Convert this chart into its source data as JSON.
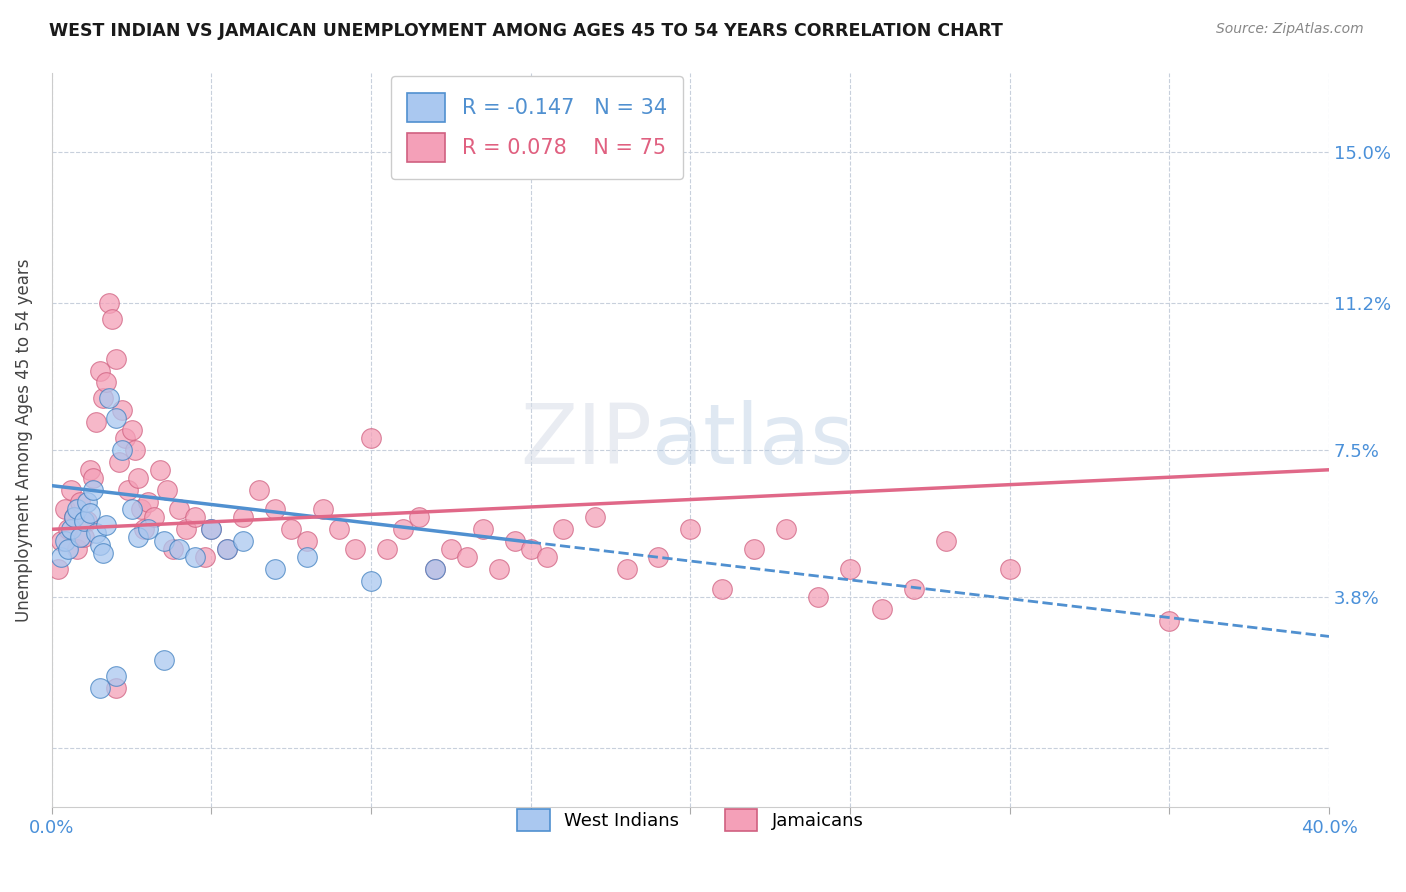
{
  "title": "WEST INDIAN VS JAMAICAN UNEMPLOYMENT AMONG AGES 45 TO 54 YEARS CORRELATION CHART",
  "source": "Source: ZipAtlas.com",
  "ylabel": "Unemployment Among Ages 45 to 54 years",
  "xlim": [
    0.0,
    40.0
  ],
  "ylim": [
    -1.5,
    17.0
  ],
  "ytick_vals": [
    0.0,
    3.8,
    7.5,
    11.2,
    15.0
  ],
  "ytick_labels": [
    "",
    "3.8%",
    "7.5%",
    "11.2%",
    "15.0%"
  ],
  "xticks": [
    0.0,
    5.0,
    10.0,
    15.0,
    20.0,
    25.0,
    30.0,
    35.0,
    40.0
  ],
  "legend_R_west": "-0.147",
  "legend_N_west": "34",
  "legend_R_jam": "0.078",
  "legend_N_jam": "75",
  "west_indian_color": "#aac8f0",
  "jamaican_color": "#f4a0b8",
  "trendline_west_color": "#5090d0",
  "trendline_jam_color": "#e06888",
  "background_color": "#ffffff",
  "west_trendline_x0": 0.0,
  "west_trendline_y0": 6.6,
  "west_trendline_x1": 40.0,
  "west_trendline_y1": 2.8,
  "jam_trendline_x0": 0.0,
  "jam_trendline_y0": 5.5,
  "jam_trendline_x1": 40.0,
  "jam_trendline_y1": 7.0,
  "west_solid_end_x": 15.0,
  "west_indian_points": [
    [
      0.3,
      4.8
    ],
    [
      0.4,
      5.2
    ],
    [
      0.5,
      5.0
    ],
    [
      0.6,
      5.5
    ],
    [
      0.7,
      5.8
    ],
    [
      0.8,
      6.0
    ],
    [
      0.9,
      5.3
    ],
    [
      1.0,
      5.7
    ],
    [
      1.1,
      6.2
    ],
    [
      1.2,
      5.9
    ],
    [
      1.3,
      6.5
    ],
    [
      1.4,
      5.4
    ],
    [
      1.5,
      5.1
    ],
    [
      1.6,
      4.9
    ],
    [
      1.7,
      5.6
    ],
    [
      1.8,
      8.8
    ],
    [
      2.0,
      8.3
    ],
    [
      2.2,
      7.5
    ],
    [
      2.5,
      6.0
    ],
    [
      2.7,
      5.3
    ],
    [
      3.0,
      5.5
    ],
    [
      3.5,
      5.2
    ],
    [
      4.0,
      5.0
    ],
    [
      4.5,
      4.8
    ],
    [
      5.0,
      5.5
    ],
    [
      5.5,
      5.0
    ],
    [
      6.0,
      5.2
    ],
    [
      7.0,
      4.5
    ],
    [
      8.0,
      4.8
    ],
    [
      10.0,
      4.2
    ],
    [
      12.0,
      4.5
    ],
    [
      2.0,
      1.8
    ],
    [
      1.5,
      1.5
    ],
    [
      3.5,
      2.2
    ]
  ],
  "jamaican_points": [
    [
      0.2,
      4.5
    ],
    [
      0.3,
      5.2
    ],
    [
      0.4,
      6.0
    ],
    [
      0.5,
      5.5
    ],
    [
      0.6,
      6.5
    ],
    [
      0.7,
      5.8
    ],
    [
      0.8,
      5.0
    ],
    [
      0.9,
      6.2
    ],
    [
      1.0,
      5.3
    ],
    [
      1.1,
      5.7
    ],
    [
      1.2,
      7.0
    ],
    [
      1.3,
      6.8
    ],
    [
      1.4,
      8.2
    ],
    [
      1.5,
      9.5
    ],
    [
      1.6,
      8.8
    ],
    [
      1.7,
      9.2
    ],
    [
      1.8,
      11.2
    ],
    [
      1.9,
      10.8
    ],
    [
      2.0,
      9.8
    ],
    [
      2.1,
      7.2
    ],
    [
      2.2,
      8.5
    ],
    [
      2.3,
      7.8
    ],
    [
      2.4,
      6.5
    ],
    [
      2.5,
      8.0
    ],
    [
      2.6,
      7.5
    ],
    [
      2.7,
      6.8
    ],
    [
      2.8,
      6.0
    ],
    [
      2.9,
      5.5
    ],
    [
      3.0,
      6.2
    ],
    [
      3.2,
      5.8
    ],
    [
      3.4,
      7.0
    ],
    [
      3.6,
      6.5
    ],
    [
      3.8,
      5.0
    ],
    [
      4.0,
      6.0
    ],
    [
      4.2,
      5.5
    ],
    [
      4.5,
      5.8
    ],
    [
      4.8,
      4.8
    ],
    [
      5.0,
      5.5
    ],
    [
      5.5,
      5.0
    ],
    [
      6.0,
      5.8
    ],
    [
      6.5,
      6.5
    ],
    [
      7.0,
      6.0
    ],
    [
      7.5,
      5.5
    ],
    [
      8.0,
      5.2
    ],
    [
      8.5,
      6.0
    ],
    [
      9.0,
      5.5
    ],
    [
      9.5,
      5.0
    ],
    [
      10.0,
      7.8
    ],
    [
      10.5,
      5.0
    ],
    [
      11.0,
      5.5
    ],
    [
      11.5,
      5.8
    ],
    [
      12.0,
      4.5
    ],
    [
      12.5,
      5.0
    ],
    [
      13.0,
      4.8
    ],
    [
      13.5,
      5.5
    ],
    [
      14.0,
      4.5
    ],
    [
      14.5,
      5.2
    ],
    [
      15.0,
      5.0
    ],
    [
      15.5,
      4.8
    ],
    [
      16.0,
      5.5
    ],
    [
      17.0,
      5.8
    ],
    [
      18.0,
      4.5
    ],
    [
      19.0,
      4.8
    ],
    [
      20.0,
      5.5
    ],
    [
      21.0,
      4.0
    ],
    [
      22.0,
      5.0
    ],
    [
      23.0,
      5.5
    ],
    [
      24.0,
      3.8
    ],
    [
      25.0,
      4.5
    ],
    [
      26.0,
      3.5
    ],
    [
      27.0,
      4.0
    ],
    [
      28.0,
      5.2
    ],
    [
      30.0,
      4.5
    ],
    [
      35.0,
      3.2
    ],
    [
      2.0,
      1.5
    ]
  ]
}
